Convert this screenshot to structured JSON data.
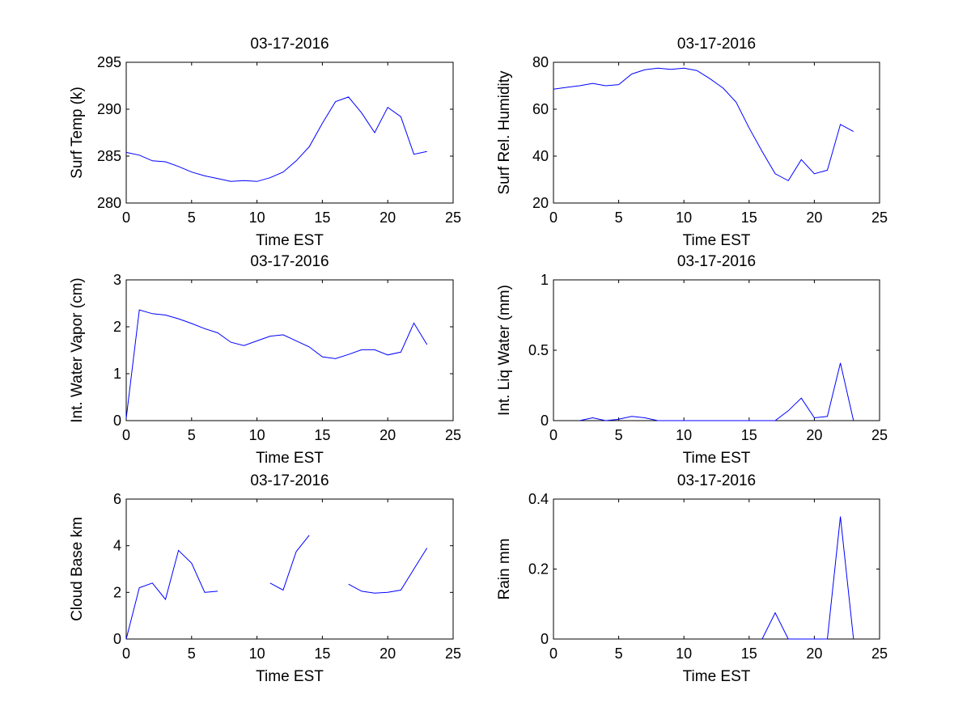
{
  "figure": {
    "background": "#ffffff",
    "axes_color": "#000000",
    "line_color": "#0000ff"
  },
  "chart_data": [
    {
      "type": "line",
      "title": "03-17-2016",
      "xlabel": "Time EST",
      "ylabel": "Surf Temp (k)",
      "xlim": [
        0,
        25
      ],
      "ylim": [
        280,
        295
      ],
      "xticks": [
        0,
        5,
        10,
        15,
        20,
        25
      ],
      "yticks": [
        280,
        285,
        290,
        295
      ],
      "xtick_labels": [
        "0",
        "5",
        "10",
        "15",
        "20",
        "25"
      ],
      "ytick_labels": [
        "280",
        "285",
        "290",
        "295"
      ],
      "series": [
        {
          "name": "Surf Temp",
          "x": [
            0,
            1,
            2,
            3,
            4,
            5,
            6,
            7,
            8,
            9,
            10,
            11,
            12,
            13,
            14,
            15,
            16,
            17,
            18,
            19,
            20,
            21,
            22,
            23
          ],
          "y": [
            285.4,
            285.1,
            284.5,
            284.4,
            283.9,
            283.3,
            282.9,
            282.6,
            282.3,
            282.4,
            282.3,
            282.7,
            283.3,
            284.5,
            286.0,
            288.5,
            290.8,
            291.3,
            289.6,
            287.5,
            290.2,
            289.2,
            285.2,
            285.5
          ]
        }
      ]
    },
    {
      "type": "line",
      "title": "03-17-2016",
      "xlabel": "Time EST",
      "ylabel": "Surf Rel. Humidity",
      "xlim": [
        0,
        25
      ],
      "ylim": [
        20,
        80
      ],
      "xticks": [
        0,
        5,
        10,
        15,
        20,
        25
      ],
      "yticks": [
        20,
        40,
        60,
        80
      ],
      "xtick_labels": [
        "0",
        "5",
        "10",
        "15",
        "20",
        "25"
      ],
      "ytick_labels": [
        "20",
        "40",
        "60",
        "80"
      ],
      "series": [
        {
          "name": "Surf Rel. Humidity",
          "x": [
            0,
            1,
            2,
            3,
            4,
            5,
            6,
            7,
            8,
            9,
            10,
            11,
            12,
            13,
            14,
            15,
            16,
            17,
            18,
            19,
            20,
            21,
            22,
            23
          ],
          "y": [
            68.5,
            69.3,
            70.0,
            71.0,
            70.0,
            70.5,
            75.0,
            76.8,
            77.5,
            77.0,
            77.5,
            76.5,
            73.0,
            69.0,
            63.0,
            52.0,
            42.0,
            32.5,
            29.5,
            38.5,
            32.5,
            34.0,
            53.5,
            50.5
          ]
        }
      ]
    },
    {
      "type": "line",
      "title": "03-17-2016",
      "xlabel": "Time EST",
      "ylabel": "Int. Water Vapor (cm)",
      "xlim": [
        0,
        25
      ],
      "ylim": [
        0,
        3
      ],
      "xticks": [
        0,
        5,
        10,
        15,
        20,
        25
      ],
      "yticks": [
        0,
        1,
        2,
        3
      ],
      "xtick_labels": [
        "0",
        "5",
        "10",
        "15",
        "20",
        "25"
      ],
      "ytick_labels": [
        "0",
        "1",
        "2",
        "3"
      ],
      "series": [
        {
          "name": "Int. Water Vapor",
          "x": [
            0,
            1,
            2,
            3,
            4,
            5,
            6,
            7,
            8,
            9,
            10,
            11,
            12,
            13,
            14,
            15,
            16,
            17,
            18,
            19,
            20,
            21,
            22,
            23
          ],
          "y": [
            0.05,
            2.36,
            2.28,
            2.25,
            2.17,
            2.07,
            1.96,
            1.87,
            1.67,
            1.6,
            1.7,
            1.8,
            1.83,
            1.7,
            1.57,
            1.36,
            1.32,
            1.41,
            1.51,
            1.51,
            1.4,
            1.46,
            2.08,
            1.62
          ]
        }
      ]
    },
    {
      "type": "line",
      "title": "03-17-2016",
      "xlabel": "Time EST",
      "ylabel": "Int. Liq Water (mm)",
      "xlim": [
        0,
        25
      ],
      "ylim": [
        0,
        1
      ],
      "xticks": [
        0,
        5,
        10,
        15,
        20,
        25
      ],
      "yticks": [
        0,
        0.5,
        1
      ],
      "xtick_labels": [
        "0",
        "5",
        "10",
        "15",
        "20",
        "25"
      ],
      "ytick_labels": [
        "0",
        "0.5",
        "1"
      ],
      "series": [
        {
          "name": "Int. Liq Water",
          "x": [
            2,
            3,
            4,
            5,
            6,
            7,
            8,
            17,
            18,
            19,
            20,
            21,
            22,
            23
          ],
          "y": [
            0,
            0.02,
            0,
            0.01,
            0.03,
            0.02,
            0,
            0,
            0.07,
            0.16,
            0.02,
            0.03,
            0.41,
            0
          ]
        }
      ]
    },
    {
      "type": "line",
      "title": "03-17-2016",
      "xlabel": "Time EST",
      "ylabel": "Cloud Base km",
      "xlim": [
        0,
        25
      ],
      "ylim": [
        0,
        6
      ],
      "xticks": [
        0,
        5,
        10,
        15,
        20,
        25
      ],
      "yticks": [
        0,
        2,
        4,
        6
      ],
      "xtick_labels": [
        "0",
        "5",
        "10",
        "15",
        "20",
        "25"
      ],
      "ytick_labels": [
        "0",
        "2",
        "4",
        "6"
      ],
      "series": [
        {
          "name": "Cloud Base",
          "x": [
            0,
            1,
            2,
            3,
            4,
            5,
            6,
            7,
            8,
            9,
            10,
            11,
            12,
            13,
            14,
            15,
            16,
            17,
            18,
            19,
            20,
            21,
            22,
            23
          ],
          "y": [
            0,
            2.2,
            2.4,
            1.7,
            3.8,
            3.25,
            2.0,
            2.05,
            null,
            null,
            null,
            2.4,
            2.1,
            3.75,
            4.45,
            null,
            null,
            2.35,
            2.05,
            1.97,
            2.0,
            2.1,
            3.0,
            3.9
          ]
        }
      ]
    },
    {
      "type": "line",
      "title": "03-17-2016",
      "xlabel": "Time EST",
      "ylabel": "Rain mm",
      "xlim": [
        0,
        25
      ],
      "ylim": [
        0,
        0.4
      ],
      "xticks": [
        0,
        5,
        10,
        15,
        20,
        25
      ],
      "yticks": [
        0,
        0.2,
        0.4
      ],
      "xtick_labels": [
        "0",
        "5",
        "10",
        "15",
        "20",
        "25"
      ],
      "ytick_labels": [
        "0",
        "0.2",
        "0.4"
      ],
      "series": [
        {
          "name": "Rain",
          "x": [
            16,
            17,
            18,
            21,
            22,
            23
          ],
          "y": [
            0,
            0.075,
            0,
            0,
            0.35,
            0
          ]
        }
      ]
    }
  ]
}
